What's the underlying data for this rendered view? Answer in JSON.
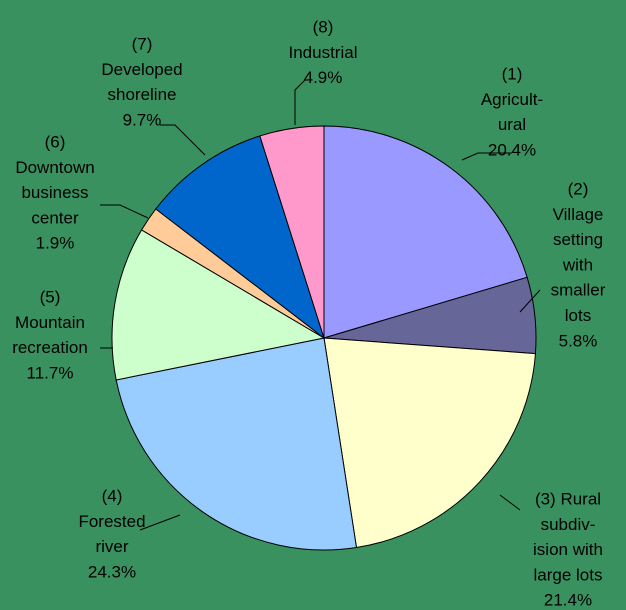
{
  "chart_data": {
    "type": "pie",
    "categories": [
      [
        "(1)",
        "Agricult-",
        "ural"
      ],
      [
        "(2)",
        "Village",
        "setting",
        "with",
        "smaller",
        "lots"
      ],
      [
        "(3) Rural",
        "subdiv-",
        "ision with",
        "large lots"
      ],
      [
        "(4)",
        "Forested",
        "river"
      ],
      [
        "(5)",
        "Mountain",
        "recreation"
      ],
      [
        "(6)",
        "Downtown",
        "business",
        "center"
      ],
      [
        "(7)",
        "Developed",
        "shoreline"
      ],
      [
        "(8)",
        "Industrial"
      ]
    ],
    "values": [
      20.4,
      5.8,
      21.4,
      24.3,
      11.7,
      1.9,
      9.7,
      4.9
    ],
    "value_labels": [
      "20.4%",
      "5.8%",
      "21.4%",
      "24.3%",
      "11.7%",
      "1.9%",
      "9.7%",
      "4.9%"
    ],
    "colors": [
      "#9999ff",
      "#666699",
      "#ffffcc",
      "#99ccff",
      "#ccffcc",
      "#ffcc99",
      "#0066cc",
      "#ff99cc"
    ]
  }
}
